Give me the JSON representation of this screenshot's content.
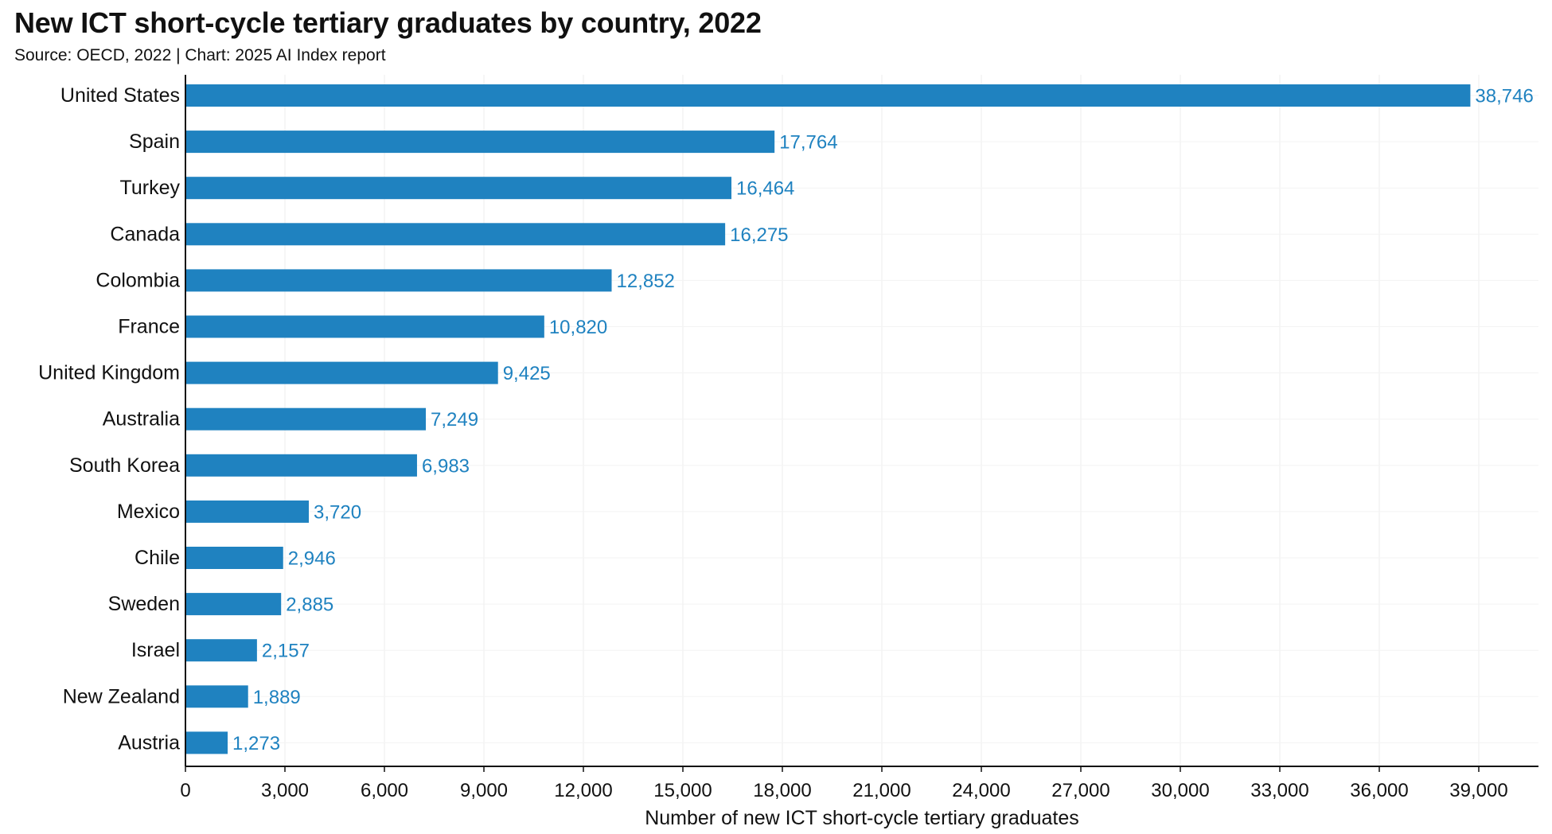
{
  "chart_data": {
    "type": "bar",
    "orientation": "horizontal",
    "title": "New ICT short-cycle tertiary graduates by country, 2022",
    "subtitle": "Source: OECD, 2022 | Chart: 2025 AI Index report",
    "xlabel": "Number of new ICT short-cycle tertiary graduates",
    "ylabel": "",
    "categories": [
      "United States",
      "Spain",
      "Turkey",
      "Canada",
      "Colombia",
      "France",
      "United Kingdom",
      "Australia",
      "South Korea",
      "Mexico",
      "Chile",
      "Sweden",
      "Israel",
      "New Zealand",
      "Austria"
    ],
    "values": [
      38746,
      17764,
      16464,
      16275,
      12852,
      10820,
      9425,
      7249,
      6983,
      3720,
      2946,
      2885,
      2157,
      1889,
      1273
    ],
    "value_labels": [
      "38,746",
      "17,764",
      "16,464",
      "16,275",
      "12,852",
      "10,820",
      "9,425",
      "7,249",
      "6,983",
      "3,720",
      "2,946",
      "2,885",
      "2,157",
      "1,889",
      "1,273"
    ],
    "xticks": [
      0,
      3000,
      6000,
      9000,
      12000,
      15000,
      18000,
      21000,
      24000,
      27000,
      30000,
      33000,
      36000,
      39000
    ],
    "xtick_labels": [
      "0",
      "3,000",
      "6,000",
      "9,000",
      "12,000",
      "15,000",
      "18,000",
      "21,000",
      "24,000",
      "27,000",
      "30,000",
      "33,000",
      "36,000",
      "39,000"
    ],
    "xlim": [
      0,
      40800
    ],
    "grid": true,
    "legend": "none",
    "bar_color": "#1f82c0",
    "value_label_color": "#1f82c0"
  }
}
